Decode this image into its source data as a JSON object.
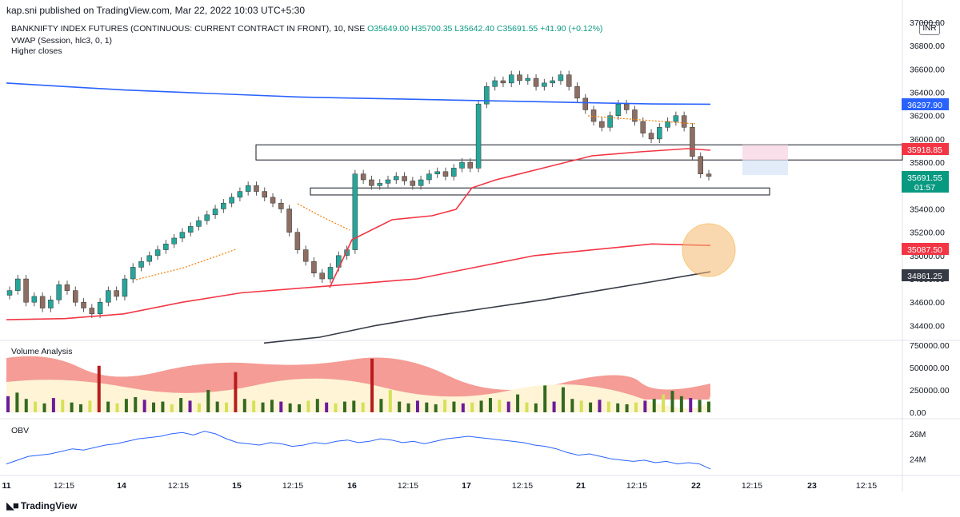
{
  "header": {
    "published_text": "kap.sni published on TradingView.com, Mar 22, 2022 10:03 UTC+5:30"
  },
  "legend": {
    "symbol": "BANKNIFTY INDEX FUTURES (CONTINUOUS: CURRENT CONTRACT IN FRONT), 10, NSE",
    "open": "O35649.00",
    "high": "H35700.35",
    "low": "L35642.40",
    "close": "C35691.55",
    "change": "+41.90 (+0.12%)",
    "indicator1": "VWAP (Session, hlc3, 0, 1)",
    "indicator2": "Higher closes"
  },
  "currency": "INR",
  "footer": {
    "brand": "TradingView"
  },
  "chart_data": [
    {
      "type": "line",
      "title": "",
      "pane": "price",
      "ylim": [
        34300,
        37000
      ],
      "y_ticks": [
        "34400.00",
        "34600.00",
        "34800.00",
        "35000.00",
        "35200.00",
        "35400.00",
        "35600.00",
        "35800.00",
        "36000.00",
        "36200.00",
        "36400.00",
        "36600.00",
        "36800.00",
        "37000.00"
      ],
      "x_ticks": [
        "11",
        "12:15",
        "14",
        "12:15",
        "15",
        "12:15",
        "16",
        "12:15",
        "17",
        "12:15",
        "21",
        "12:15",
        "22",
        "12:15",
        "23",
        "12:15"
      ],
      "price_tags": [
        {
          "value": "36297.90",
          "color": "#2962ff"
        },
        {
          "value": "35918.85",
          "color": "#f23645"
        },
        {
          "value": "35691.55",
          "color": "#089981"
        },
        {
          "value": "01:57",
          "color": "#089981"
        },
        {
          "value": "35087.50",
          "color": "#f23645"
        },
        {
          "value": "34861.25",
          "color": "#363a45"
        }
      ],
      "close_series": [
        34700,
        34800,
        34600,
        34650,
        34550,
        34620,
        34750,
        34700,
        34600,
        34550,
        34500,
        34600,
        34700,
        34650,
        34800,
        34900,
        34950,
        35000,
        35050,
        35100,
        35150,
        35200,
        35250,
        35300,
        35350,
        35400,
        35450,
        35500,
        35550,
        35600,
        35550,
        35500,
        35450,
        35400,
        35200,
        35050,
        34950,
        34850,
        34800,
        34900,
        35000,
        35050,
        35700,
        35650,
        35600,
        35620,
        35650,
        35680,
        35640,
        35600,
        35650,
        35700,
        35720,
        35680,
        35750,
        35800,
        35750,
        36300,
        36450,
        36500,
        36480,
        36550,
        36500,
        36520,
        36450,
        36480,
        36500,
        36550,
        36450,
        36350,
        36250,
        36150,
        36100,
        36200,
        36300,
        36250,
        36150,
        36050,
        36000,
        36100,
        36150,
        36200,
        36100,
        35850,
        35700,
        35680
      ],
      "series": [
        {
          "name": "",
          "type": "line",
          "color": "#2962ff",
          "values": [
            36480,
            36450,
            36420,
            36400,
            36380,
            36360,
            36350,
            36340,
            36330,
            36320,
            36310,
            36300,
            36298
          ]
        },
        {
          "name": "",
          "type": "line",
          "color": "#f23645",
          "values": [
            34450,
            34460,
            34500,
            34600,
            34680,
            34720,
            34760,
            34800,
            34900,
            35000,
            35050,
            35100,
            35087
          ]
        },
        {
          "name": "",
          "type": "line",
          "color": "#363a45",
          "values": [
            34250,
            34300,
            34400,
            34480,
            34550,
            34620,
            34700,
            34780,
            34861
          ]
        }
      ],
      "zones": [
        {
          "label": "",
          "top": 35950,
          "bottom": 35820
        },
        {
          "label": "",
          "top": 35580,
          "bottom": 35520
        }
      ]
    },
    {
      "type": "bar",
      "title": "Volume Analysis",
      "pane": "volume",
      "ylim": [
        0,
        750000
      ],
      "y_ticks": [
        "750000.00",
        "500000.00",
        "250000.00",
        "0.00"
      ],
      "values": [
        180000,
        220000,
        150000,
        120000,
        100000,
        160000,
        140000,
        110000,
        90000,
        130000,
        520000,
        120000,
        100000,
        150000,
        170000,
        140000,
        110000,
        120000,
        90000,
        160000,
        130000,
        100000,
        250000,
        120000,
        110000,
        450000,
        150000,
        130000,
        110000,
        140000,
        120000,
        100000,
        90000,
        130000,
        150000,
        110000,
        100000,
        120000,
        130000,
        110000,
        600000,
        150000,
        250000,
        120000,
        100000,
        130000,
        110000,
        90000,
        140000,
        120000,
        100000,
        110000,
        130000,
        160000,
        140000,
        120000,
        200000,
        110000,
        100000,
        300000,
        120000,
        280000,
        150000,
        130000,
        110000,
        140000,
        120000,
        100000,
        90000,
        110000,
        130000,
        150000,
        200000,
        240000,
        180000,
        160000,
        140000,
        120000
      ]
    },
    {
      "type": "line",
      "title": "OBV",
      "pane": "obv",
      "y_ticks": [
        "26M",
        "24M"
      ],
      "values": [
        23.6,
        23.9,
        24.2,
        24.3,
        24.4,
        24.6,
        24.8,
        24.7,
        24.9,
        25.1,
        25.2,
        25.4,
        25.6,
        25.7,
        25.8,
        26.0,
        26.1,
        25.9,
        26.2,
        26.0,
        25.6,
        25.3,
        25.2,
        25.1,
        25.3,
        25.2,
        25.0,
        25.1,
        25.3,
        25.2,
        25.4,
        25.5,
        25.3,
        25.4,
        25.6,
        25.5,
        25.3,
        25.4,
        25.2,
        25.4,
        25.6,
        25.7,
        25.8,
        25.7,
        25.6,
        25.5,
        25.4,
        25.3,
        25.1,
        25.0,
        24.8,
        24.5,
        24.3,
        24.4,
        24.2,
        24.0,
        23.9,
        23.8,
        23.9,
        23.7,
        23.8,
        23.6,
        23.7,
        23.6,
        23.2
      ]
    }
  ]
}
